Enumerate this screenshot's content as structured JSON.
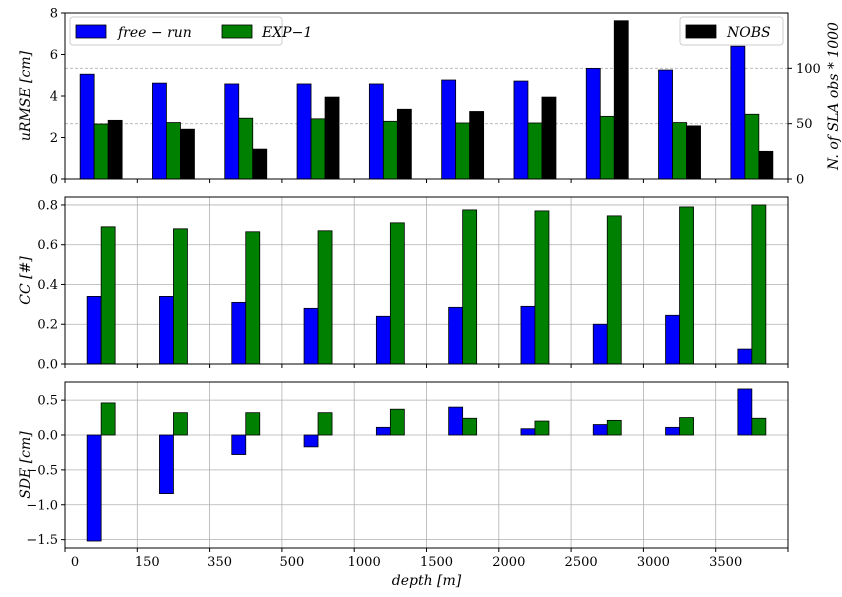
{
  "chart_data": [
    {
      "type": "bar",
      "panel": "top",
      "x_tick_labels": [
        "0",
        "150",
        "350",
        "500",
        "1000",
        "1500",
        "2000",
        "2500",
        "3000",
        "3500"
      ],
      "ylabel": "uRMSE [cm]",
      "ylim": [
        0,
        8
      ],
      "yticks": [
        "0",
        "2",
        "4",
        "6",
        "8"
      ],
      "ylabel_right": "N. of SLA obs * 1000",
      "ylim_right": [
        0,
        150
      ],
      "yticks_right": [
        "0",
        "50",
        "100"
      ],
      "grid": "right axis horizontal, dashed",
      "legend_left": "top-left",
      "legend_right": "top-right",
      "series": [
        {
          "name": "free-run",
          "axis": "left",
          "color": "#0000ff",
          "values": [
            5.05,
            4.62,
            4.58,
            4.58,
            4.58,
            4.77,
            4.72,
            5.33,
            5.25,
            6.4
          ]
        },
        {
          "name": "EXP-1",
          "axis": "left",
          "color": "#008000",
          "values": [
            2.65,
            2.72,
            2.93,
            2.9,
            2.78,
            2.7,
            2.7,
            3.02,
            2.72,
            3.12
          ]
        },
        {
          "name": "NOBS",
          "axis": "right",
          "color": "#000000",
          "values": [
            53,
            45,
            27,
            74,
            63,
            61,
            74,
            143,
            48,
            25
          ]
        }
      ]
    },
    {
      "type": "bar",
      "panel": "middle",
      "ylabel": "CC [#]",
      "ylim": [
        0,
        0.84
      ],
      "yticks": [
        "0.0",
        "0.2",
        "0.4",
        "0.6",
        "0.8"
      ],
      "grid": "on",
      "series": [
        {
          "name": "free-run",
          "color": "#0000ff",
          "values": [
            0.34,
            0.34,
            0.31,
            0.28,
            0.24,
            0.285,
            0.29,
            0.2,
            0.245,
            0.075
          ]
        },
        {
          "name": "EXP-1",
          "color": "#008000",
          "values": [
            0.69,
            0.68,
            0.665,
            0.67,
            0.71,
            0.775,
            0.77,
            0.745,
            0.79,
            0.8
          ]
        }
      ]
    },
    {
      "type": "bar",
      "panel": "bottom",
      "xlabel": "depth [m]",
      "ylabel": "SDE [cm]",
      "ylim": [
        -1.62,
        0.76
      ],
      "yticks": [
        "−1.5",
        "−1.0",
        "−0.5",
        "0.0",
        "0.5"
      ],
      "grid": "on",
      "series": [
        {
          "name": "free-run",
          "color": "#0000ff",
          "values": [
            -1.52,
            -0.84,
            -0.28,
            -0.17,
            0.11,
            0.4,
            0.09,
            0.15,
            0.11,
            0.66
          ]
        },
        {
          "name": "EXP-1",
          "color": "#008000",
          "values": [
            0.46,
            0.32,
            0.32,
            0.32,
            0.37,
            0.24,
            0.2,
            0.21,
            0.25,
            0.24
          ]
        }
      ]
    }
  ],
  "legend": {
    "free_run": "free − run",
    "exp1": "EXP−1",
    "nobs": "NOBS"
  }
}
